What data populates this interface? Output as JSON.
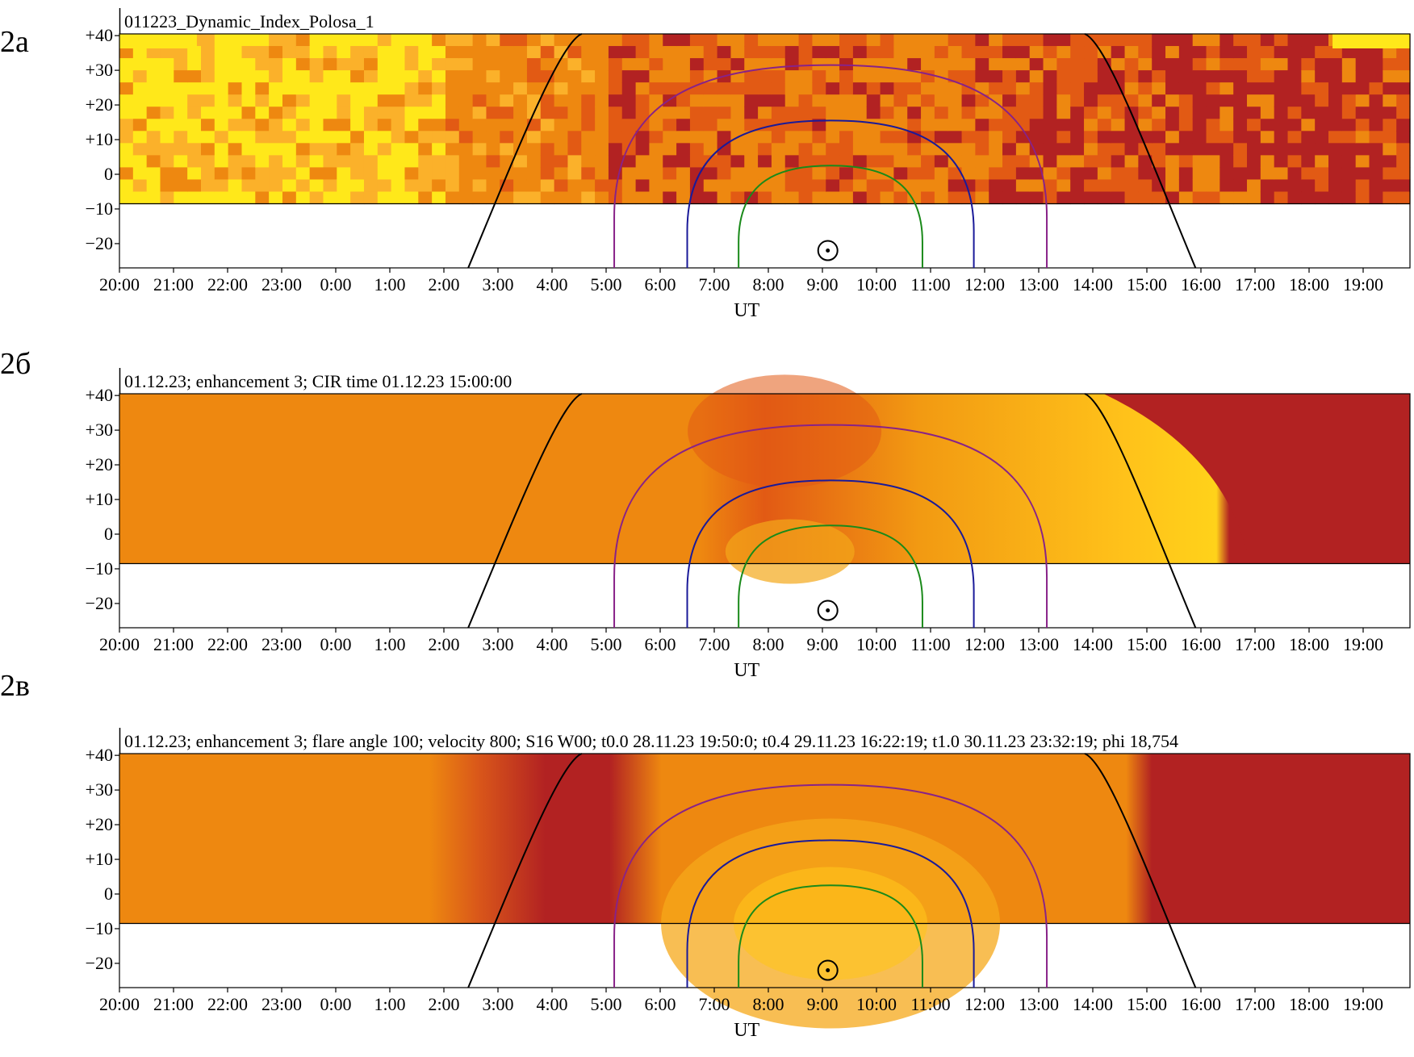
{
  "figure": {
    "panels": [
      {
        "label": "2a",
        "title": "011223_Dynamic_Index_Polosa_1",
        "style": "noisy"
      },
      {
        "label": "2б",
        "title": "01.12.23; enhancement 3; CIR time 01.12.23 15:00:00",
        "style": "smooth"
      },
      {
        "label": "2в",
        "title": "01.12.23; enhancement 3; flare angle 100; velocity 800; S16 W00; t0.0 28.11.23 19:50:0; t0.4 29.11.23 16:22:19; t1.0 30.11.23 23:32:19; phi 18,754",
        "style": "model"
      }
    ]
  },
  "chart_data": {
    "type": "heatmap",
    "xlabel": "UT",
    "x_ticks": [
      "20:00",
      "21:00",
      "22:00",
      "23:00",
      "0:00",
      "1:00",
      "2:00",
      "3:00",
      "4:00",
      "5:00",
      "6:00",
      "7:00",
      "8:00",
      "9:00",
      "10:00",
      "11:00",
      "12:00",
      "13:00",
      "14:00",
      "15:00",
      "16:00",
      "17:00",
      "18:00",
      "19:00"
    ],
    "y_ticks": [
      "+40",
      "+30",
      "+20",
      "+10",
      "0",
      "−10",
      "−20"
    ],
    "y_values": [
      40,
      30,
      20,
      10,
      0,
      -10,
      -20
    ],
    "ylim": [
      -27,
      40.5
    ],
    "xlim_hours": [
      0,
      24
    ],
    "data_band": [
      -8.5,
      40.5
    ],
    "sun_marker": {
      "symbol": "⊙",
      "x_hours": 13.1,
      "y": -22
    },
    "curves": [
      {
        "color": "#000000",
        "kind": "band",
        "x_bottom_left": 6.45,
        "x_top_left": 8.55,
        "x_top_right": 17.85,
        "x_bottom_right": 19.9
      },
      {
        "color": "#882288",
        "kind": "arc",
        "center_x": 13.15,
        "half_width": 4.0,
        "top_y": 31.5
      },
      {
        "color": "#1a1a99",
        "kind": "arc",
        "center_x": 13.15,
        "half_width": 2.65,
        "top_y": 15.5
      },
      {
        "color": "#1a8a1a",
        "kind": "arc",
        "center_x": 13.15,
        "half_width": 1.7,
        "top_y": 2.5
      }
    ],
    "colors": {
      "yellow": "#ffe81a",
      "orange": "#ee8810",
      "red": "#b22222",
      "deep": "#e25a14"
    }
  }
}
